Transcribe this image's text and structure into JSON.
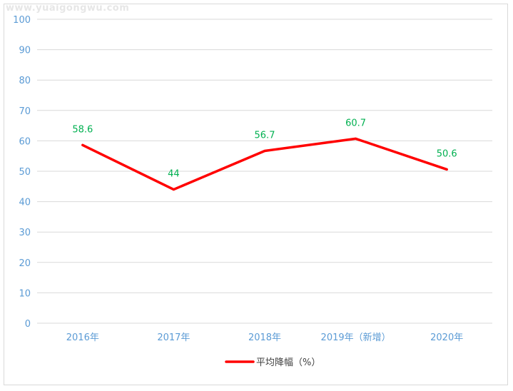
{
  "watermark": "www.yuaigongwu.com",
  "chart_data": {
    "type": "line",
    "categories": [
      "2016年",
      "2017年",
      "2018年",
      "2019年（新增）",
      "2020年"
    ],
    "series": [
      {
        "name": "平均降幅（%）",
        "values": [
          58.6,
          44,
          56.7,
          60.7,
          50.6
        ],
        "color": "#ff0000"
      }
    ],
    "data_labels": [
      "58.6",
      "44",
      "56.7",
      "60.7",
      "50.6"
    ],
    "ylim": [
      0,
      100
    ],
    "yticks": [
      0,
      10,
      20,
      30,
      40,
      50,
      60,
      70,
      80,
      90,
      100
    ],
    "grid": true,
    "legend": "bottom",
    "title": "",
    "xlabel": "",
    "ylabel": "",
    "colors": {
      "tick": "#5b9bd5",
      "label": "#00b050",
      "grid": "#d9d9d9"
    }
  }
}
